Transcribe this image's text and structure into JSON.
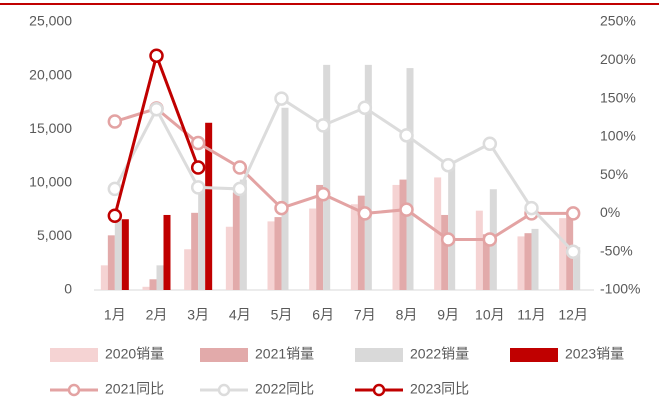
{
  "chart_data": {
    "type": "bar",
    "categories": [
      "1月",
      "2月",
      "3月",
      "4月",
      "5月",
      "6月",
      "7月",
      "8月",
      "9月",
      "10月",
      "11月",
      "12月"
    ],
    "series": [
      {
        "name": "2020销量",
        "color": "#f5d3d3",
        "values": [
          2300,
          300,
          3800,
          5900,
          6400,
          7600,
          8000,
          9800,
          10500,
          7400,
          5000,
          6700
        ]
      },
      {
        "name": "2021销量",
        "color": "#e2aaaa",
        "values": [
          5100,
          1000,
          7200,
          9100,
          6800,
          9800,
          8800,
          10300,
          7000,
          5200,
          5300,
          7300
        ]
      },
      {
        "name": "2022销量",
        "color": "#d9d9d9",
        "values": [
          7000,
          2300,
          9500,
          10300,
          17000,
          21000,
          21000,
          20700,
          11500,
          9400,
          5700,
          4000
        ]
      },
      {
        "name": "2023销量",
        "color": "#c00000",
        "values": [
          6600,
          7000,
          15600,
          null,
          null,
          null,
          null,
          null,
          null,
          null,
          null,
          null
        ]
      },
      {
        "name": "2021同比",
        "type": "line",
        "axis": "y2",
        "color": "#e3a3a3",
        "values": [
          120,
          137,
          92,
          60,
          7,
          25,
          0,
          5,
          -34,
          -34,
          0,
          0
        ]
      },
      {
        "name": "2022同比",
        "type": "line",
        "axis": "y2",
        "color": "#dcdcdc",
        "values": [
          32,
          136,
          34,
          32,
          150,
          115,
          138,
          102,
          63,
          91,
          7,
          -50
        ]
      },
      {
        "name": "2023同比",
        "type": "line",
        "axis": "y2",
        "color": "#c00000",
        "values": [
          -3,
          206,
          60,
          null,
          null,
          null,
          null,
          null,
          null,
          null,
          null,
          null
        ]
      }
    ],
    "ylim": [
      0,
      25000
    ],
    "yticks": [
      0,
      {
        "value": 5000,
        "label": "5,000"
      },
      {
        "value": 10000,
        "label": "10,000"
      },
      {
        "value": 15000,
        "label": "15,000"
      },
      {
        "value": 20000,
        "label": "20,000"
      },
      {
        "value": 25000,
        "label": "25,000"
      }
    ],
    "y2lim": [
      -100,
      250
    ],
    "y2ticks": [
      {
        "value": -100,
        "label": "-100%"
      },
      {
        "value": -50,
        "label": "-50%"
      },
      {
        "value": 0,
        "label": "0%"
      },
      {
        "value": 50,
        "label": "50%"
      },
      {
        "value": 100,
        "label": "100%"
      },
      {
        "value": 150,
        "label": "150%"
      },
      {
        "value": 200,
        "label": "200%"
      },
      {
        "value": 250,
        "label": "250%"
      }
    ],
    "legend": "bottom"
  }
}
